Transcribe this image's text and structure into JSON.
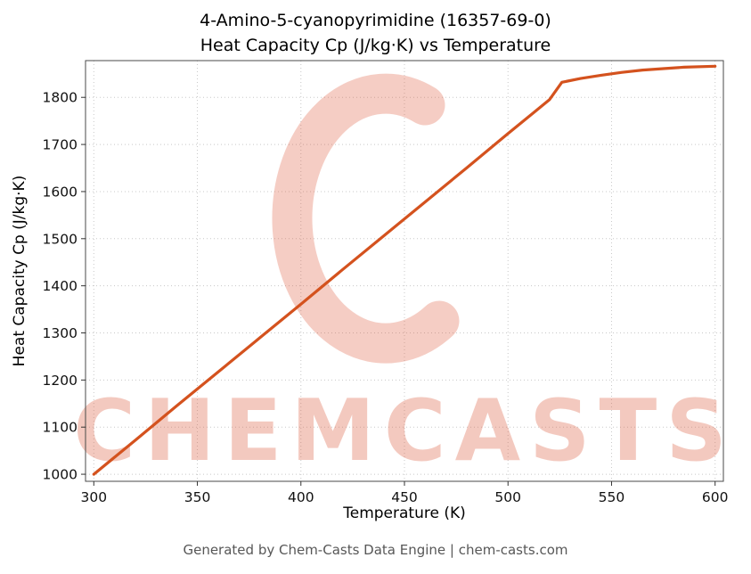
{
  "title": {
    "line1": "4-Amino-5-cyanopyrimidine (16357-69-0)",
    "line2": "Heat Capacity Cp (J/kg·K) vs Temperature"
  },
  "axes": {
    "xlabel": "Temperature (K)",
    "ylabel": "Heat Capacity Cp (J/kg·K)"
  },
  "footer": {
    "text": "Generated by Chem-Casts Data Engine | chem-casts.com"
  },
  "watermark": {
    "text": "CHEMCASTS",
    "color": "#dd5a3c",
    "text_opacity": 0.32,
    "logo_opacity": 0.3
  },
  "chart_data": {
    "type": "line",
    "title": "4-Amino-5-cyanopyrimidine (16357-69-0) — Heat Capacity Cp (J/kg·K) vs Temperature",
    "xlabel": "Temperature (K)",
    "ylabel": "Heat Capacity Cp (J/kg·K)",
    "x": [
      300,
      320,
      340,
      360,
      380,
      400,
      420,
      440,
      460,
      480,
      500,
      510,
      520,
      526,
      535,
      545,
      555,
      565,
      575,
      585,
      600
    ],
    "y": [
      1000,
      1072,
      1145,
      1217,
      1289,
      1361,
      1434,
      1506,
      1578,
      1650,
      1723,
      1759,
      1795,
      1832,
      1840,
      1847,
      1853,
      1858,
      1861,
      1864,
      1866
    ],
    "xlim": [
      296,
      604
    ],
    "ylim": [
      985,
      1878
    ],
    "x_ticks": [
      300,
      350,
      400,
      450,
      500,
      550,
      600
    ],
    "y_ticks": [
      1000,
      1100,
      1200,
      1300,
      1400,
      1500,
      1600,
      1700,
      1800
    ],
    "line_color": "#d4521e",
    "grid": true,
    "grid_style": "dotted",
    "legend": "none"
  }
}
